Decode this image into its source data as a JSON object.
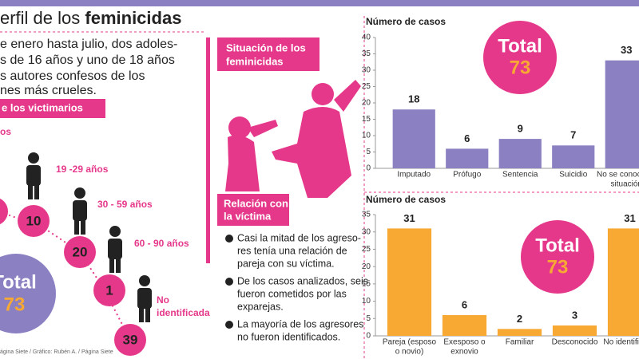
{
  "header": {
    "title_prefix": "erfil de los ",
    "title_bold": "feminicidas"
  },
  "intro": [
    "e enero hasta julio, dos adoles-",
    "s de 16 años y uno de 18 años",
    "s autores confesos de los",
    "nes más crueles."
  ],
  "victimarios": {
    "label": "e los victimarios",
    "cut_label": "os",
    "groups": [
      {
        "label": "19 -29 años",
        "count": 10
      },
      {
        "label": "30 - 59 años",
        "count": 20
      },
      {
        "label": "60 - 90 años",
        "count": 1
      },
      {
        "label": [
          "No",
          "identificada"
        ],
        "count": 39
      }
    ],
    "total": {
      "label": "Total",
      "value": 73
    }
  },
  "situacion": [
    "Situación de los",
    "feminicidas"
  ],
  "relacion": [
    "Relación con",
    "la víctima"
  ],
  "bullets": [
    [
      "Casi la mitad de los agreso-",
      "res tenía una relación de",
      "pareja con su víctima."
    ],
    [
      "De los casos analizados, seis",
      "fueron cometidos por las",
      "exparejas."
    ],
    [
      "La mayoría de los agresores",
      "no fueron identificados."
    ]
  ],
  "source": "ágina Siete / Gráfico: Rubén A. / Página Siete",
  "chart_data": [
    {
      "type": "bar",
      "y_label": "Número de casos",
      "categories": [
        [
          "Imputado"
        ],
        [
          "Prófugo"
        ],
        [
          "Sentencia"
        ],
        [
          "Suicidio"
        ],
        [
          "No se conoce su",
          "situación"
        ]
      ],
      "values": [
        18,
        6,
        9,
        7,
        33
      ],
      "color": "#8b80c2",
      "ylim": [
        0,
        40
      ],
      "yticks": [
        0,
        5,
        10,
        15,
        20,
        25,
        30,
        35,
        40
      ],
      "annotation": {
        "label": "Total",
        "value": 73
      }
    },
    {
      "type": "bar",
      "y_label": "Número de casos",
      "categories": [
        [
          "Pareja (esposo",
          "o novio)"
        ],
        [
          "Exesposo o",
          "exnovio"
        ],
        [
          "Familiar"
        ],
        [
          "Desconocido"
        ],
        [
          "No identificado"
        ]
      ],
      "values": [
        31,
        6,
        2,
        3,
        31
      ],
      "color": "#f7a934",
      "ylim": [
        0,
        35
      ],
      "yticks": [
        0,
        5,
        10,
        15,
        20,
        25,
        30,
        35
      ],
      "annotation": {
        "label": "Total",
        "value": 73
      }
    }
  ]
}
